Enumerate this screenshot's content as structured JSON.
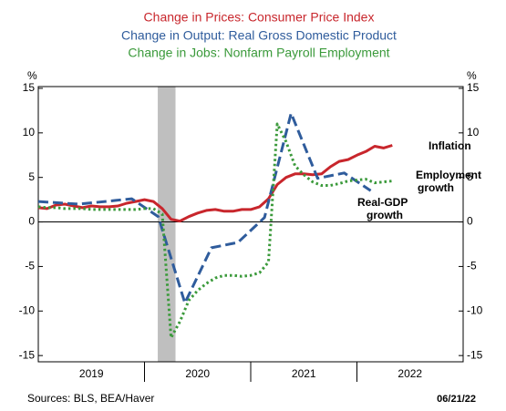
{
  "chart_data": {
    "type": "line",
    "titles": [
      {
        "text": "Change in Prices: Consumer Price Index",
        "color": "#c8262c"
      },
      {
        "text": "Change in Output: Real Gross Domestic Product",
        "color": "#2f5c9c"
      },
      {
        "text": "Change in Jobs: Nonfarm Payroll Employment",
        "color": "#3b9a3b"
      }
    ],
    "y_label": "%",
    "y2_label": "%",
    "xlim": [
      2019,
      2023
    ],
    "xticks": [
      {
        "value": 2019.5,
        "label": "2019"
      },
      {
        "value": 2020.5,
        "label": "2020"
      },
      {
        "value": 2021.5,
        "label": "2021"
      },
      {
        "value": 2022.5,
        "label": "2022"
      }
    ],
    "x_minor_ticks": [
      2020,
      2021,
      2022
    ],
    "ylim": [
      -15.7,
      15.2
    ],
    "yticks": [
      -15,
      -10,
      -5,
      0,
      5,
      10,
      15
    ],
    "y2lim": [
      -15.7,
      15.2
    ],
    "y2ticks": [
      -15,
      -10,
      -5,
      0,
      5,
      10,
      15
    ],
    "recession": [
      2020.125,
      2020.292
    ],
    "series": [
      {
        "name": "Inflation",
        "color": "#c8262c",
        "style": "solid",
        "x": [
          2019.0,
          2019.083,
          2019.167,
          2019.25,
          2019.333,
          2019.417,
          2019.5,
          2019.583,
          2019.667,
          2019.75,
          2019.833,
          2019.917,
          2020.0,
          2020.083,
          2020.167,
          2020.25,
          2020.333,
          2020.417,
          2020.5,
          2020.583,
          2020.667,
          2020.75,
          2020.833,
          2020.917,
          2021.0,
          2021.083,
          2021.167,
          2021.25,
          2021.333,
          2021.417,
          2021.5,
          2021.583,
          2021.667,
          2021.75,
          2021.833,
          2021.917,
          2022.0,
          2022.083,
          2022.167,
          2022.25,
          2022.333
        ],
        "values": [
          1.6,
          1.5,
          1.9,
          2.0,
          1.8,
          1.6,
          1.8,
          1.7,
          1.7,
          1.8,
          2.1,
          2.3,
          2.5,
          2.3,
          1.5,
          0.3,
          0.1,
          0.6,
          1.0,
          1.3,
          1.4,
          1.2,
          1.2,
          1.4,
          1.4,
          1.7,
          2.6,
          4.2,
          5.0,
          5.4,
          5.4,
          5.3,
          5.4,
          6.2,
          6.8,
          7.0,
          7.5,
          7.9,
          8.5,
          8.3,
          8.6
        ]
      },
      {
        "name": "Real-GDP growth",
        "color": "#2f5c9c",
        "style": "dashed",
        "x": [
          2019.0,
          2019.38,
          2019.63,
          2019.88,
          2020.13,
          2020.38,
          2020.63,
          2020.88,
          2021.13,
          2021.38,
          2021.63,
          2021.88,
          2022.13
        ],
        "values": [
          2.3,
          2.0,
          2.3,
          2.6,
          0.6,
          -9.1,
          -2.9,
          -2.3,
          0.5,
          12.2,
          4.9,
          5.5,
          3.5
        ]
      },
      {
        "name": "Employment growth",
        "color": "#3b9a3b",
        "style": "dotted",
        "x": [
          2019.0,
          2019.083,
          2019.167,
          2019.25,
          2019.333,
          2019.417,
          2019.5,
          2019.583,
          2019.667,
          2019.75,
          2019.833,
          2019.917,
          2020.0,
          2020.083,
          2020.167,
          2020.25,
          2020.333,
          2020.417,
          2020.5,
          2020.583,
          2020.667,
          2020.75,
          2020.833,
          2020.917,
          2021.0,
          2021.083,
          2021.167,
          2021.25,
          2021.333,
          2021.417,
          2021.5,
          2021.583,
          2021.667,
          2021.75,
          2021.833,
          2021.917,
          2022.0,
          2022.083,
          2022.167,
          2022.25,
          2022.333
        ],
        "values": [
          1.7,
          1.6,
          1.6,
          1.5,
          1.5,
          1.5,
          1.4,
          1.4,
          1.4,
          1.4,
          1.4,
          1.4,
          1.5,
          1.5,
          0.9,
          -13.0,
          -11.2,
          -8.8,
          -7.7,
          -6.9,
          -6.3,
          -6.0,
          -6.0,
          -6.1,
          -6.0,
          -5.7,
          -4.5,
          11.0,
          9.0,
          6.3,
          5.3,
          4.5,
          4.1,
          4.1,
          4.3,
          4.6,
          4.7,
          4.8,
          4.4,
          4.5,
          4.6
        ]
      }
    ],
    "annotations": [
      [
        "Inflation"
      ],
      [
        "Employment",
        "growth"
      ],
      [
        "Real-GDP",
        "growth"
      ]
    ],
    "source": "Sources:  BLS, BEA/Haver",
    "date": "06/21/22"
  }
}
